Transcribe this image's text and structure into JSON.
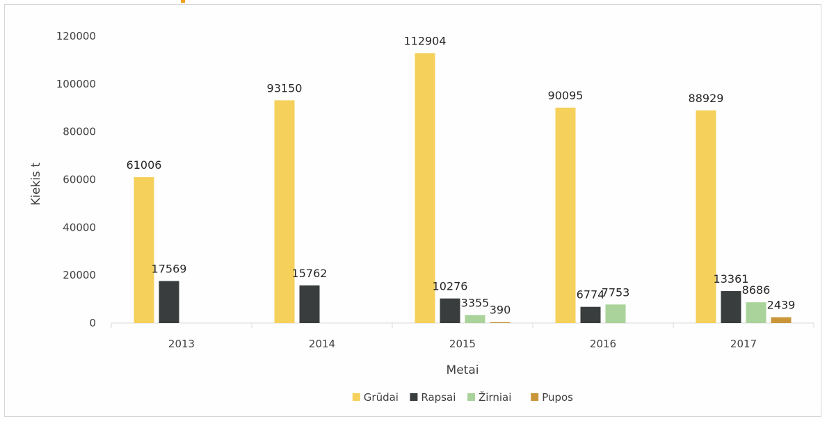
{
  "chart_data": {
    "type": "bar",
    "categories": [
      "2013",
      "2014",
      "2015",
      "2016",
      "2017"
    ],
    "series": [
      {
        "name": "Grūdai",
        "color": "#f5d05a",
        "values": [
          61006,
          93150,
          112904,
          90095,
          88929
        ]
      },
      {
        "name": "Rapsai",
        "color": "#3a3d3d",
        "values": [
          17569,
          15762,
          10276,
          6774,
          13361
        ]
      },
      {
        "name": "Žirniai",
        "color": "#a9d39a",
        "values": [
          null,
          null,
          3355,
          7753,
          8686
        ]
      },
      {
        "name": "Pupos",
        "color": "#c9973a",
        "values": [
          null,
          null,
          390,
          null,
          2439
        ]
      }
    ],
    "yticks": [
      "0",
      "20000",
      "40000",
      "60000",
      "80000",
      "100000",
      "120000"
    ],
    "ylim": [
      0,
      120000
    ],
    "xlabel": "Metai",
    "ylabel": "Kiekis t",
    "legend": "bottom",
    "grid": false
  }
}
